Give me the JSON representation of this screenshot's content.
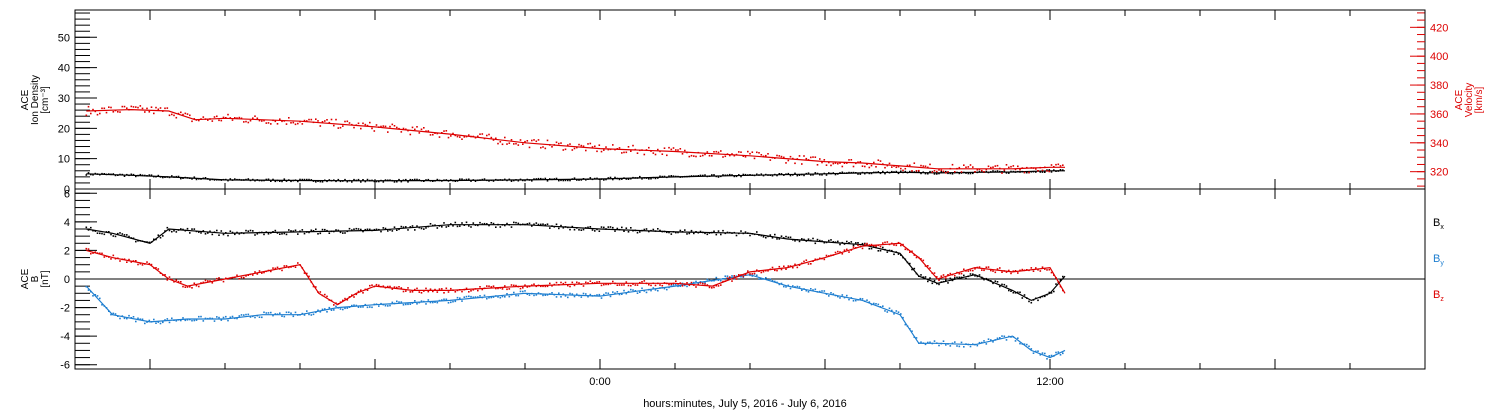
{
  "chart_data": [
    {
      "type": "scatter",
      "panel": "top",
      "xlabel": "hours:minutes, July  5, 2016 - July  6, 2016",
      "x_tick_labels": [
        {
          "hour": 0,
          "label": "0:00"
        },
        {
          "hour": 12,
          "label": "12:00"
        }
      ],
      "xlim_hours": [
        -14,
        22
      ],
      "left_axis": {
        "label_lines": [
          "ACE",
          "Ion Density",
          "[cm⁻³]"
        ],
        "ylim": [
          0,
          59
        ],
        "ticks": [
          0,
          10,
          20,
          30,
          40,
          50
        ],
        "color": "#000000"
      },
      "right_axis": {
        "label_lines": [
          "ACE",
          "Velocity",
          "[km/s]"
        ],
        "ylim": [
          308,
          432
        ],
        "ticks": [
          320,
          340,
          360,
          380,
          400,
          420
        ],
        "color": "#dd0000"
      },
      "series": [
        {
          "axis": "left",
          "color": "#000000",
          "x": [
            -13.7,
            -12.5,
            -11.5,
            -10,
            -8,
            -6,
            -4,
            -2,
            0,
            2,
            4,
            6,
            7,
            8,
            9,
            10,
            11,
            12,
            12.4
          ],
          "y": [
            5,
            4.5,
            4,
            3,
            2.8,
            2.7,
            2.8,
            3,
            3.3,
            4,
            4.5,
            5,
            5.3,
            5.5,
            5.3,
            5.5,
            5.6,
            6,
            6
          ]
        },
        {
          "axis": "right",
          "color": "#dd0000",
          "x": [
            -13.7,
            -12.5,
            -11.5,
            -10.8,
            -10,
            -8,
            -6,
            -4,
            -2,
            0,
            2,
            4,
            6,
            7,
            8,
            9,
            10,
            11,
            12,
            12.4
          ],
          "y": [
            362,
            363,
            362,
            356,
            357,
            355,
            351,
            346,
            340,
            336,
            334,
            331,
            327,
            326,
            324,
            322,
            322,
            322,
            323,
            323
          ]
        }
      ]
    },
    {
      "type": "scatter",
      "panel": "bottom",
      "xlim_hours": [
        -14,
        22
      ],
      "left_axis": {
        "label_lines": [
          "ACE",
          "B",
          "[nT]"
        ],
        "ylim": [
          -6.3,
          6.3
        ],
        "ticks": [
          -6,
          -4,
          -2,
          0,
          2,
          4,
          6
        ],
        "color": "#000000"
      },
      "zero_line": true,
      "series": [
        {
          "name": "B",
          "subscript": "x",
          "color": "#000000",
          "x": [
            -13.7,
            -13,
            -12,
            -11.5,
            -10,
            -8,
            -6,
            -4,
            -2,
            0,
            2,
            4,
            5,
            6,
            7,
            8,
            8.5,
            9,
            10,
            11,
            11.5,
            12,
            12.4
          ],
          "y": [
            3.5,
            3.2,
            2.5,
            3.5,
            3.2,
            3.3,
            3.4,
            3.8,
            3.8,
            3.5,
            3.3,
            3.2,
            2.8,
            2.6,
            2.4,
            1.8,
            0.2,
            -0.3,
            0.3,
            -0.8,
            -1.5,
            -1.0,
            0.2
          ]
        },
        {
          "name": "B",
          "subscript": "y",
          "color": "#1f7fd0",
          "x": [
            -13.7,
            -13,
            -12,
            -11,
            -10,
            -9,
            -8,
            -7,
            -6,
            -4,
            -2,
            0,
            2,
            4,
            5,
            6,
            7,
            8,
            8.5,
            9,
            10,
            11,
            11.5,
            12,
            12.4
          ],
          "y": [
            -0.5,
            -2.5,
            -3.0,
            -2.8,
            -2.8,
            -2.5,
            -2.5,
            -2.0,
            -1.8,
            -1.5,
            -1.0,
            -1.2,
            -0.5,
            0.3,
            -0.5,
            -1.0,
            -1.5,
            -2.5,
            -4.5,
            -4.5,
            -4.6,
            -4.0,
            -5.0,
            -5.5,
            -5.0
          ]
        },
        {
          "name": "B",
          "subscript": "z",
          "color": "#dd0000",
          "x": [
            -13.7,
            -13,
            -12,
            -11.5,
            -11,
            -10,
            -9,
            -8,
            -7.5,
            -7,
            -6.5,
            -6,
            -5,
            -4,
            -2,
            0,
            2,
            3,
            4,
            5,
            6,
            7,
            8,
            8.5,
            9,
            10,
            11,
            12,
            12.4
          ],
          "y": [
            2.0,
            1.5,
            1.0,
            0,
            -0.5,
            0,
            0.5,
            1.0,
            -1.0,
            -1.8,
            -1.0,
            -0.5,
            -0.8,
            -0.8,
            -0.5,
            -0.3,
            -0.3,
            -0.5,
            0.5,
            0.8,
            1.5,
            2.3,
            2.5,
            1.5,
            0,
            0.8,
            0.5,
            0.8,
            -1.0
          ]
        }
      ]
    }
  ]
}
